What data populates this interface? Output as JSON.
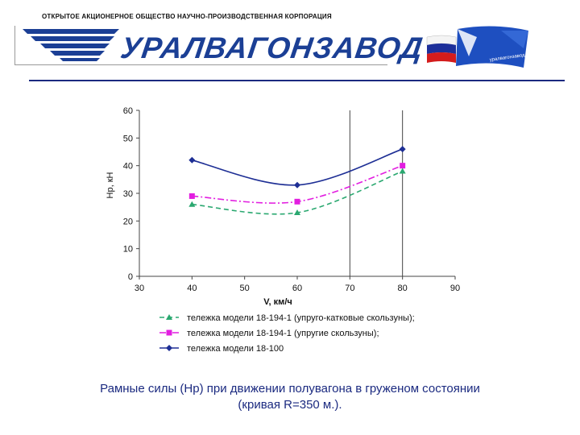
{
  "header": {
    "company_line": "ОТКРЫТОЕ АКЦИОНЕРНОЕ ОБЩЕСТВО НАУЧНО-ПРОИЗВОДСТВЕННАЯ КОРПОРАЦИЯ",
    "logo_text": "УРАЛВАГОНЗАВОД",
    "flag_text": "уралвагонзавод"
  },
  "colors": {
    "brand_blue": "#1b3f95",
    "series_green": "#2aa870",
    "series_magenta": "#e21ee0",
    "series_navy": "#1e2f95"
  },
  "chart_data": {
    "type": "line",
    "title": "",
    "xlabel": "V, км/ч",
    "ylabel": "Нр, кН",
    "xlim": [
      30,
      90
    ],
    "ylim": [
      0,
      60
    ],
    "xticks": [
      30,
      40,
      50,
      60,
      70,
      80,
      90
    ],
    "yticks": [
      0,
      10,
      20,
      30,
      40,
      50,
      60
    ],
    "x": [
      40,
      60,
      80
    ],
    "grid": "vertical lines at 70 and 80",
    "legend_position": "bottom",
    "series": [
      {
        "name": "тележка модели 18-194-1 (упруго-катковые скользуны);",
        "values": [
          26,
          23,
          38
        ],
        "marker": "triangle",
        "line": "dashed",
        "color": "#2aa870"
      },
      {
        "name": "тележка модели 18-194-1 (упругие скользуны);",
        "values": [
          29,
          27,
          40
        ],
        "marker": "square",
        "line": "dash-dot",
        "color": "#e21ee0"
      },
      {
        "name": "тележка модели 18-100",
        "values": [
          42,
          33,
          46
        ],
        "marker": "diamond",
        "line": "solid",
        "color": "#1e2f95"
      }
    ]
  },
  "caption": {
    "line1": "Рамные силы (Нр) при движении полувагона в груженом состоянии",
    "line2": "(кривая R=350 м.)."
  }
}
